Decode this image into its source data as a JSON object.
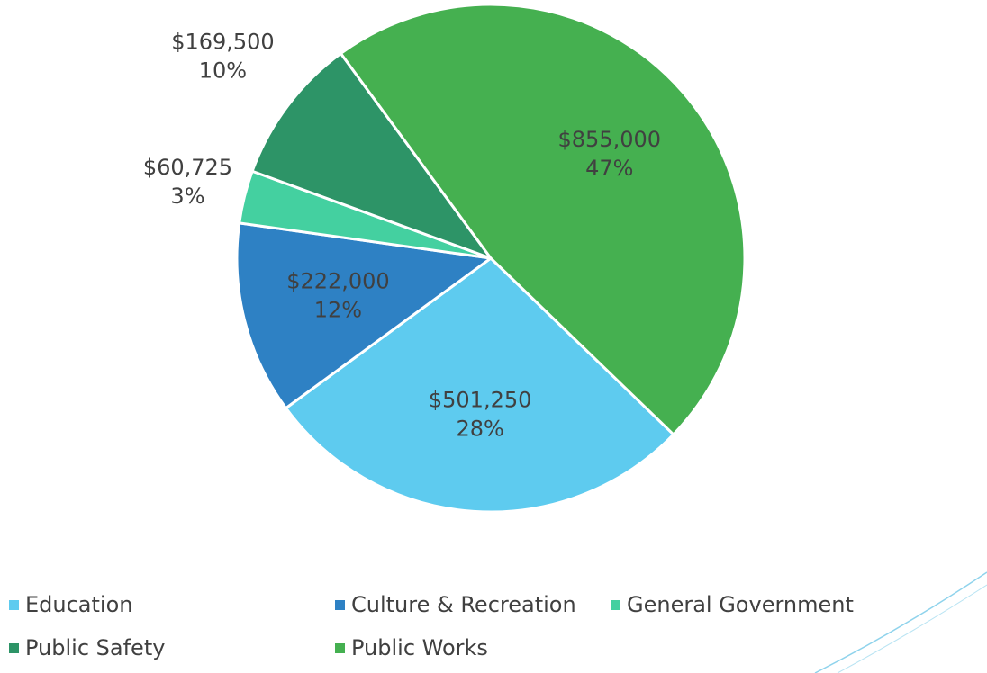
{
  "chart_data": {
    "type": "pie",
    "categories": [
      "Education",
      "Culture & Recreation",
      "General Government",
      "Public Safety",
      "Public Works"
    ],
    "values": [
      501250,
      222000,
      60725,
      169500,
      855000
    ],
    "value_labels": [
      "$501,250",
      "$222,000",
      "$60,725",
      "$169,500",
      "$855,000"
    ],
    "percents": [
      28,
      12,
      3,
      10,
      47
    ],
    "percent_labels": [
      "28%",
      "12%",
      "3%",
      "10%",
      "47%"
    ],
    "colors": [
      "#5ecbef",
      "#2e81c4",
      "#44d0a0",
      "#2d9467",
      "#45b050"
    ],
    "legend": "bottom"
  }
}
